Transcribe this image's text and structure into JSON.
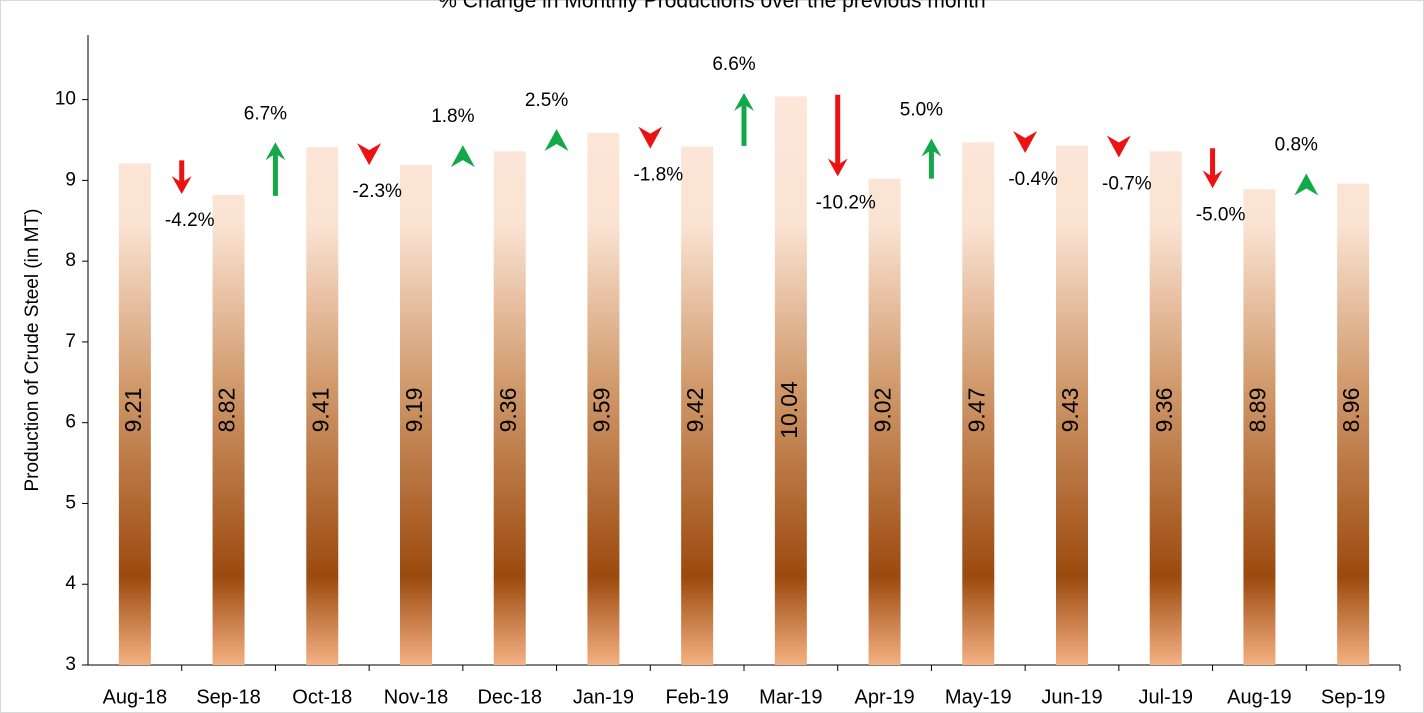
{
  "chart_data": {
    "type": "bar",
    "title": "% Change in Monthly Productions over the previous month",
    "y_label": "Production of Crude Steel (in MT)",
    "categories": [
      "Aug-18",
      "Sep-18",
      "Oct-18",
      "Nov-18",
      "Dec-18",
      "Jan-19",
      "Feb-19",
      "Mar-19",
      "Apr-19",
      "May-19",
      "Jun-19",
      "Jul-19",
      "Aug-19",
      "Sep-19"
    ],
    "values": [
      9.21,
      8.82,
      9.41,
      9.19,
      9.36,
      9.59,
      9.42,
      10.04,
      9.02,
      9.47,
      9.43,
      9.36,
      8.89,
      8.96
    ],
    "value_label_color": "#ffff00",
    "changes": {
      "values": [
        -4.2,
        6.7,
        -2.3,
        1.8,
        2.5,
        -1.8,
        6.6,
        -10.2,
        5.0,
        -0.4,
        -0.7,
        -5.0,
        0.8
      ],
      "value_labels": [
        "-4.2%",
        "6.7%",
        "-2.3%",
        "1.8%",
        "2.5%",
        "-1.8%",
        "6.6%",
        "-10.2%",
        "5.0%",
        "-0.4%",
        "-0.7%",
        "-5.0%",
        "0.8%"
      ],
      "up_color": "#13a84a",
      "down_color": "#ee1111",
      "up_label_color": "#4f6228",
      "down_label_color": "#ee1111"
    },
    "ylim": [
      3,
      10.8
    ],
    "yticks": [
      3,
      4,
      5,
      6,
      7,
      8,
      9,
      10
    ],
    "grid": false
  }
}
